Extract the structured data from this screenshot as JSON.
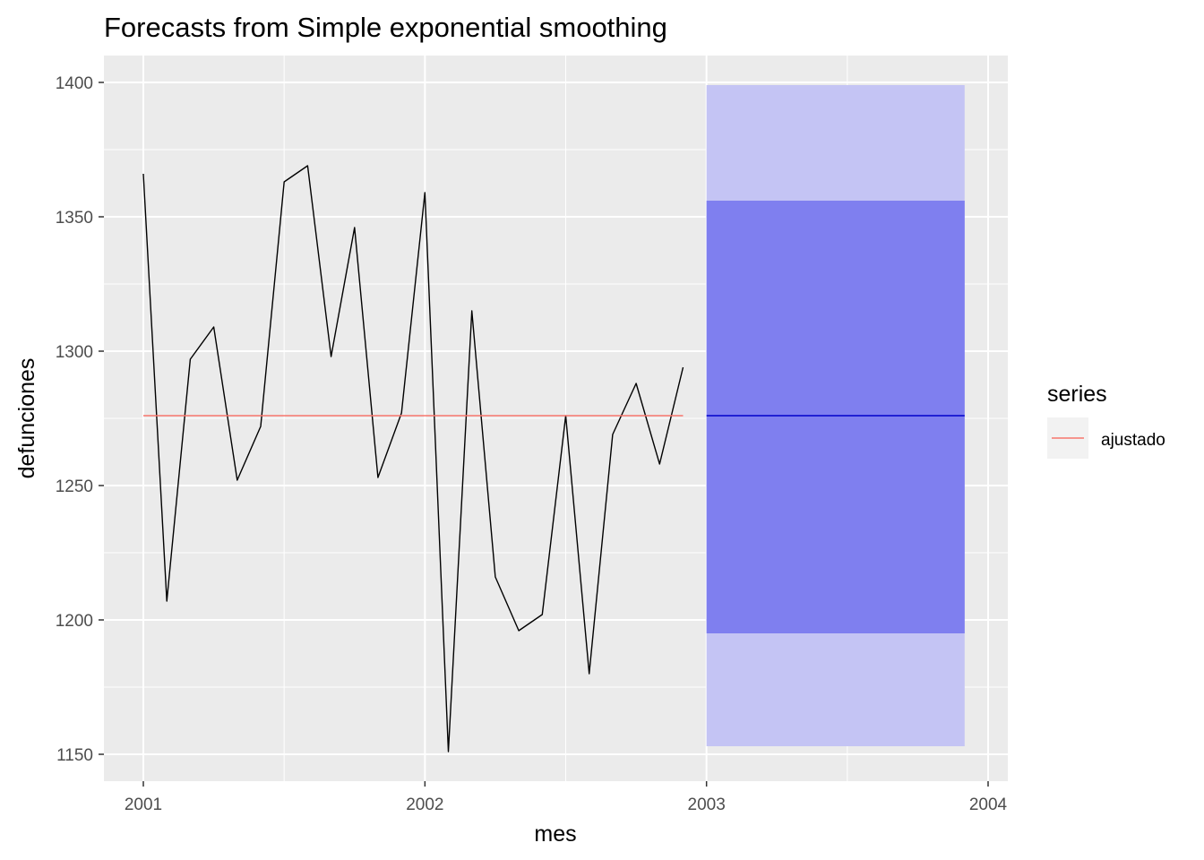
{
  "chart_data": {
    "type": "line",
    "title": "Forecasts from Simple exponential smoothing",
    "xlabel": "mes",
    "ylabel": "defunciones",
    "xlim": [
      2000.86,
      2004.07
    ],
    "ylim": [
      1140,
      1410
    ],
    "x_ticks": [
      2001,
      2002,
      2003,
      2004
    ],
    "x_tick_labels": [
      "2001",
      "2002",
      "2003",
      "2004"
    ],
    "y_ticks": [
      1150,
      1200,
      1250,
      1300,
      1350,
      1400
    ],
    "y_tick_labels": [
      "1150",
      "1200",
      "1250",
      "1300",
      "1350",
      "1400"
    ],
    "grid": true,
    "legend": {
      "title": "series",
      "position": "right"
    },
    "observed": {
      "color": "#000000",
      "x": [
        2001.0,
        2001.0833,
        2001.1667,
        2001.25,
        2001.3333,
        2001.4167,
        2001.5,
        2001.5833,
        2001.6667,
        2001.75,
        2001.8333,
        2001.9167,
        2002.0,
        2002.0833,
        2002.1667,
        2002.25,
        2002.3333,
        2002.4167,
        2002.5,
        2002.5833,
        2002.6667,
        2002.75,
        2002.8333,
        2002.9167
      ],
      "values": [
        1366,
        1207,
        1297,
        1309,
        1252,
        1272,
        1363,
        1369,
        1298,
        1346,
        1253,
        1277,
        1359,
        1151,
        1315,
        1216,
        1196,
        1202,
        1276,
        1180,
        1269,
        1288,
        1258,
        1294
      ]
    },
    "series": [
      {
        "name": "ajustado",
        "color": "#f8766d",
        "x": [
          2001.0,
          2002.9167
        ],
        "values": [
          1276,
          1276
        ]
      }
    ],
    "forecast": {
      "color": "#0000cc",
      "x_start": 2003.0,
      "x_end": 2003.9167,
      "point": 1276,
      "lo80": 1195,
      "hi80": 1356,
      "lo95": 1153,
      "hi95": 1399,
      "band80_color": "#7f7fef",
      "band95_color": "#c4c4f4"
    }
  }
}
